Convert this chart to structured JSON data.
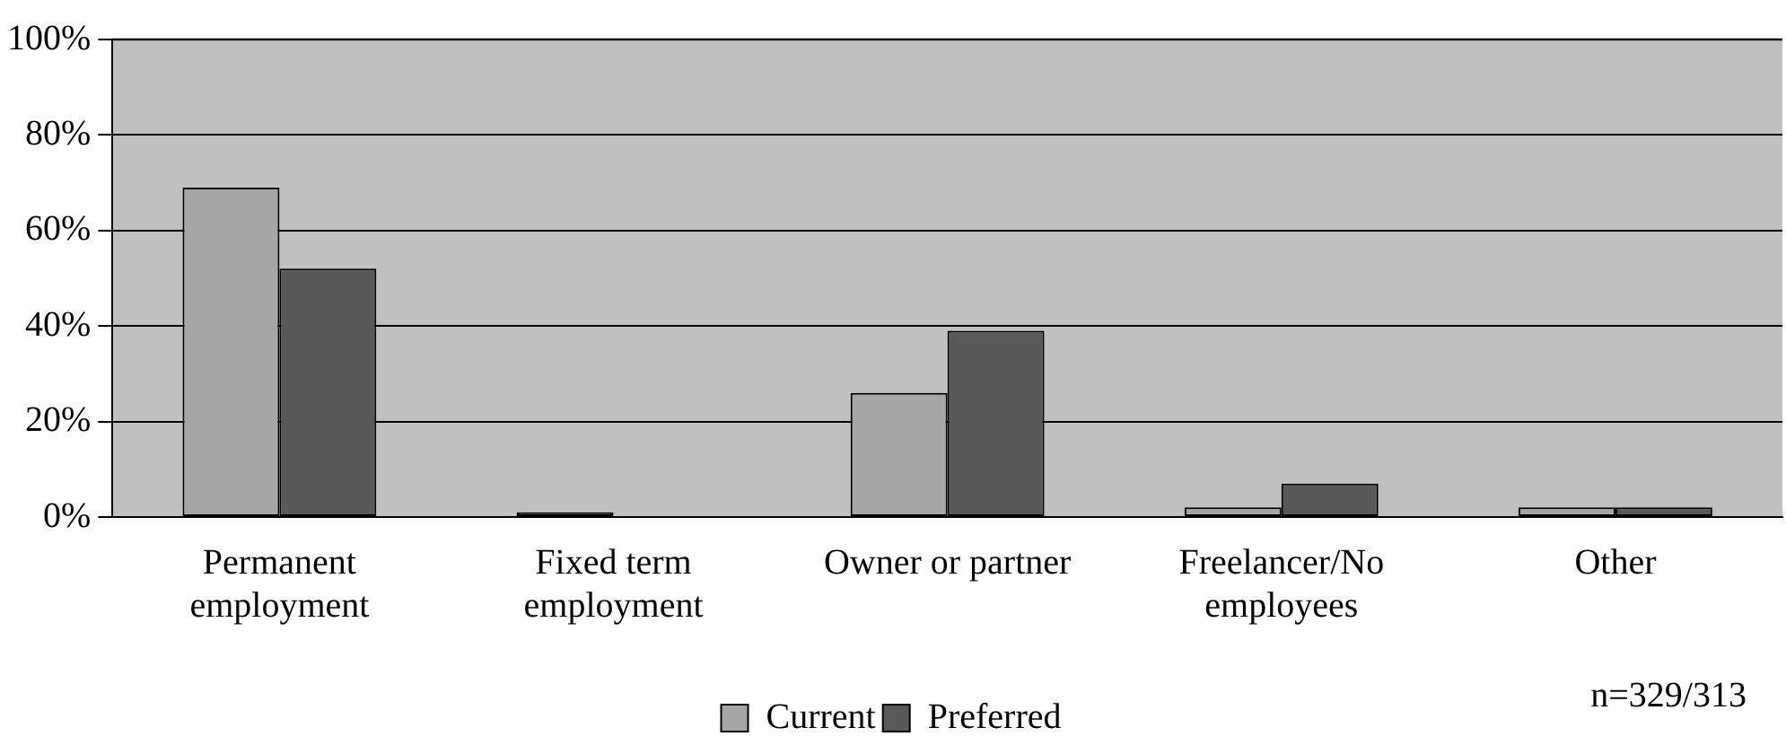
{
  "chart_data": {
    "type": "bar",
    "categories": [
      "Permanent employment",
      "Fixed term employment",
      "Owner or partner",
      "Freelancer/No employees",
      "Other"
    ],
    "series": [
      {
        "name": "Current",
        "color": "#a6a6a6",
        "values": [
          69,
          1,
          26,
          2,
          2
        ]
      },
      {
        "name": "Preferred",
        "color": "#595959",
        "values": [
          52,
          0,
          39,
          7,
          2
        ]
      }
    ],
    "ylim": [
      0,
      100
    ],
    "yticks": [
      {
        "value": 0,
        "label": "0%"
      },
      {
        "value": 20,
        "label": "20%"
      },
      {
        "value": 40,
        "label": "40%"
      },
      {
        "value": 60,
        "label": "60%"
      },
      {
        "value": 80,
        "label": "80%"
      },
      {
        "value": 100,
        "label": "100%"
      }
    ],
    "grid": "y",
    "legend": "bottom",
    "annotations": [
      "n=329/313"
    ]
  }
}
